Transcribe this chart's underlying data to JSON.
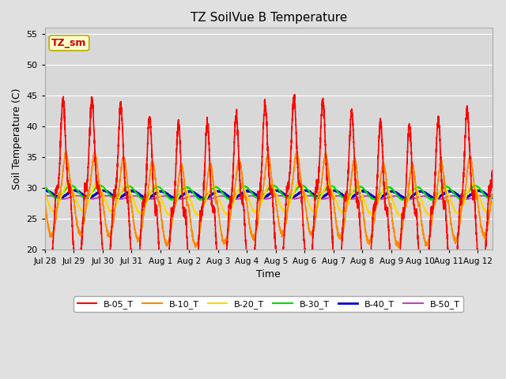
{
  "title": "TZ SoilVue B Temperature",
  "xlabel": "Time",
  "ylabel": "Soil Temperature (C)",
  "ylim": [
    20,
    56
  ],
  "yticks": [
    20,
    25,
    30,
    35,
    40,
    45,
    50,
    55
  ],
  "n_days": 15.5,
  "samples_per_day": 288,
  "series_order": [
    "B-50_T",
    "B-40_T",
    "B-30_T",
    "B-20_T",
    "B-10_T",
    "B-05_T"
  ],
  "series": {
    "B-05_T": {
      "color": "#FF0000",
      "linewidth": 1.2,
      "base": 28.0,
      "amp": 14.5,
      "phase": 0.0,
      "sharpness": 4.0
    },
    "B-10_T": {
      "color": "#FF8800",
      "linewidth": 1.2,
      "base": 28.2,
      "amp": 6.5,
      "phase": 0.1,
      "sharpness": 2.5
    },
    "B-20_T": {
      "color": "#FFD700",
      "linewidth": 1.2,
      "base": 28.3,
      "amp": 2.3,
      "phase": 0.18,
      "sharpness": 1.5
    },
    "B-30_T": {
      "color": "#00DD00",
      "linewidth": 1.2,
      "base": 29.3,
      "amp": 1.0,
      "phase": 0.28,
      "sharpness": 1.0
    },
    "B-40_T": {
      "color": "#0000CC",
      "linewidth": 2.0,
      "base": 29.0,
      "amp": 0.55,
      "phase": 0.4,
      "sharpness": 1.0
    },
    "B-50_T": {
      "color": "#BB44BB",
      "linewidth": 1.2,
      "base": 28.5,
      "amp": 0.25,
      "phase": 0.5,
      "sharpness": 1.0
    }
  },
  "legend_label": "TZ_sm",
  "legend_box_facecolor": "#FFFFCC",
  "legend_box_edgecolor": "#BBAA00",
  "legend_label_color": "#CC0000",
  "fig_facecolor": "#E0E0E0",
  "ax_facecolor": "#D8D8D8",
  "grid_color": "#FFFFFF",
  "tick_labels": [
    "Jul 28",
    "Jul 29",
    "Jul 30",
    "Jul 31",
    "Aug 1",
    "Aug 2",
    "Aug 3",
    "Aug 4",
    "Aug 5",
    "Aug 6",
    "Aug 7",
    "Aug 8",
    "Aug 9",
    "Aug 10",
    "Aug 11",
    "Aug 12"
  ],
  "tick_positions": [
    0,
    1,
    2,
    3,
    4,
    5,
    6,
    7,
    8,
    9,
    10,
    11,
    12,
    13,
    14,
    15
  ]
}
